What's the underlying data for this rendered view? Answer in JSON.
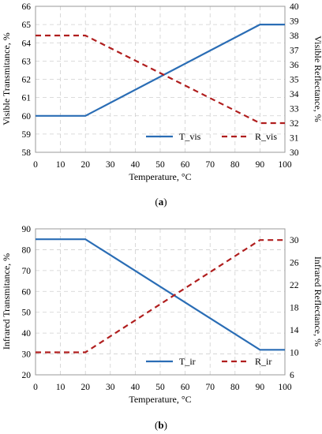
{
  "chart_data": [
    {
      "type": "line",
      "panel_label": "(a)",
      "xlabel": "Temperature, °C",
      "ylabel": "Visible Transmitance, %",
      "y2label": "Visible Reflectance, %",
      "xlim": [
        0,
        100
      ],
      "ylim": [
        58,
        66
      ],
      "y2lim": [
        30,
        40
      ],
      "xticks": [
        0,
        10,
        20,
        30,
        40,
        50,
        60,
        70,
        80,
        90,
        100
      ],
      "yticks": [
        58,
        59,
        60,
        61,
        62,
        63,
        64,
        65,
        66
      ],
      "y2ticks": [
        30,
        31,
        32,
        33,
        34,
        35,
        36,
        37,
        38,
        39,
        40
      ],
      "grid": true,
      "legend_position": "bottom-right",
      "series": [
        {
          "name": "T_vis",
          "axis": "left",
          "style": "solid",
          "color": "#2a6db5",
          "x": [
            0,
            20,
            90,
            100
          ],
          "y": [
            60,
            60,
            65,
            65
          ]
        },
        {
          "name": "R_vis",
          "axis": "right",
          "style": "dashed",
          "color": "#b01e1e",
          "x": [
            0,
            20,
            90,
            100
          ],
          "y": [
            38,
            38,
            32,
            32
          ]
        }
      ]
    },
    {
      "type": "line",
      "panel_label": "(b)",
      "xlabel": "Temperature, °C",
      "ylabel": "Infrared Transmitance, %",
      "y2label": "Infrared Reflectance, %",
      "xlim": [
        0,
        100
      ],
      "ylim": [
        20,
        90
      ],
      "y2lim": [
        6,
        32
      ],
      "xticks": [
        0,
        10,
        20,
        30,
        40,
        50,
        60,
        70,
        80,
        90,
        100
      ],
      "yticks": [
        20,
        30,
        40,
        50,
        60,
        70,
        80,
        90
      ],
      "y2ticks": [
        6,
        10,
        14,
        18,
        22,
        26,
        30
      ],
      "grid": true,
      "legend_position": "bottom-right",
      "series": [
        {
          "name": "T_ir",
          "axis": "left",
          "style": "solid",
          "color": "#2a6db5",
          "x": [
            0,
            20,
            90,
            100
          ],
          "y": [
            85,
            85,
            32,
            32
          ]
        },
        {
          "name": "R_ir",
          "axis": "right",
          "style": "dashed",
          "color": "#b01e1e",
          "x": [
            0,
            20,
            90,
            100
          ],
          "y": [
            10,
            10,
            30,
            30
          ]
        }
      ]
    }
  ]
}
